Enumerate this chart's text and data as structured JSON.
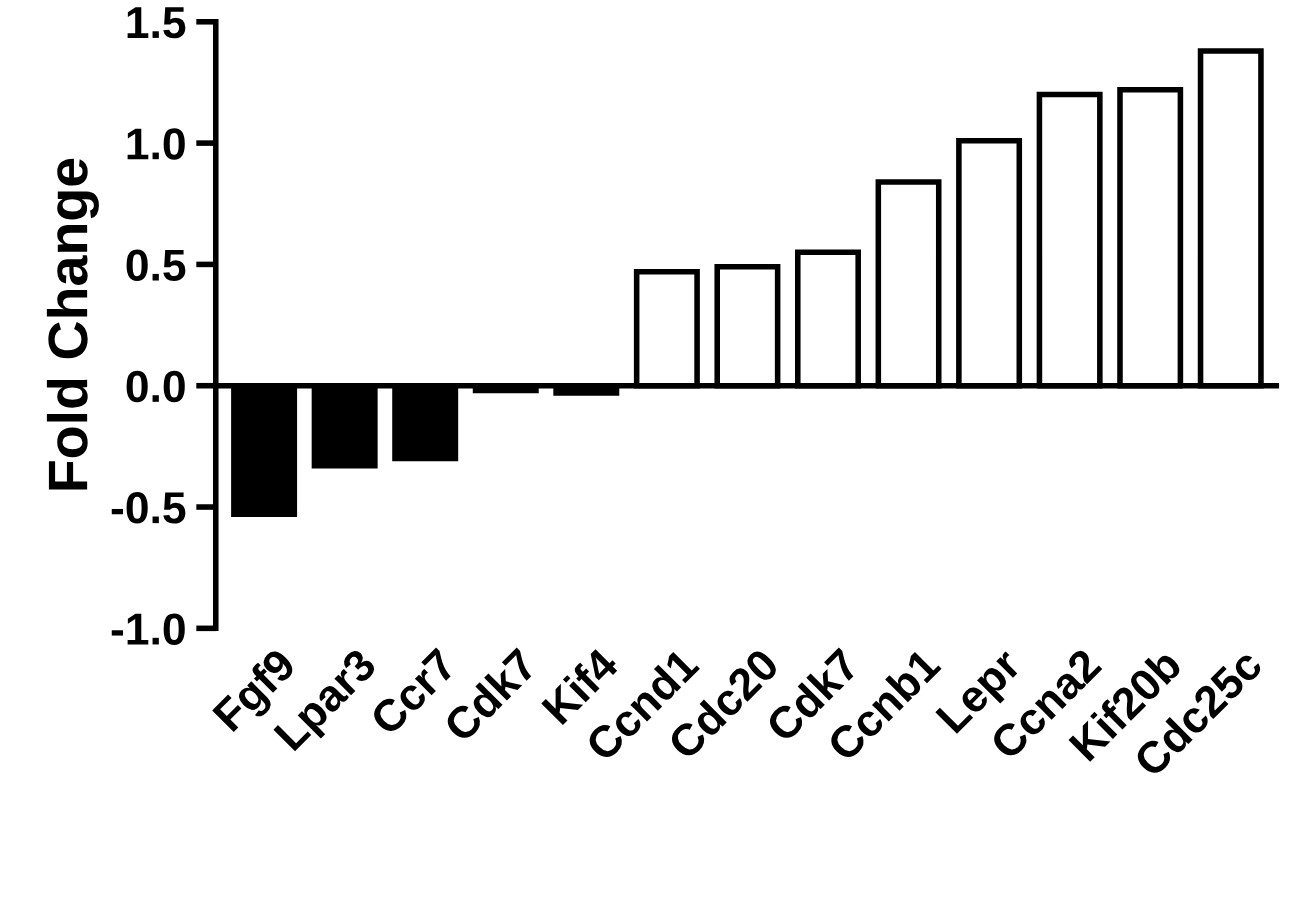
{
  "chart_data": {
    "type": "bar",
    "ylabel": "Fold Change",
    "categories": [
      "Fgf9",
      "Lpar3",
      "Ccr7",
      "Cdk7",
      "Kif4",
      "Ccnd1",
      "Cdc20",
      "Cdk7",
      "Ccnb1",
      "Lepr",
      "Ccna2",
      "Kif20b",
      "Cdc25c"
    ],
    "values": [
      -0.53,
      -0.33,
      -0.3,
      -0.02,
      -0.03,
      0.47,
      0.49,
      0.55,
      0.84,
      1.01,
      1.2,
      1.22,
      1.38
    ],
    "colors": [
      "#000000",
      "#000000",
      "#000000",
      "#000000",
      "#000000",
      "#ffffff",
      "#ffffff",
      "#ffffff",
      "#ffffff",
      "#ffffff",
      "#ffffff",
      "#ffffff",
      "#ffffff"
    ],
    "ylim": [
      -1.0,
      1.5
    ],
    "yticks": [
      {
        "value": -1.0,
        "label": "-1.0"
      },
      {
        "value": -0.5,
        "label": "-0.5"
      },
      {
        "value": 0.0,
        "label": "0.0"
      },
      {
        "value": 0.5,
        "label": "0.5"
      },
      {
        "value": 1.0,
        "label": "1.0"
      },
      {
        "value": 1.5,
        "label": "1.5"
      }
    ],
    "ref_lines": [
      {
        "axis": "y",
        "value": 0.0,
        "color": "#000000",
        "line_style": "solid"
      }
    ],
    "grid": false
  }
}
